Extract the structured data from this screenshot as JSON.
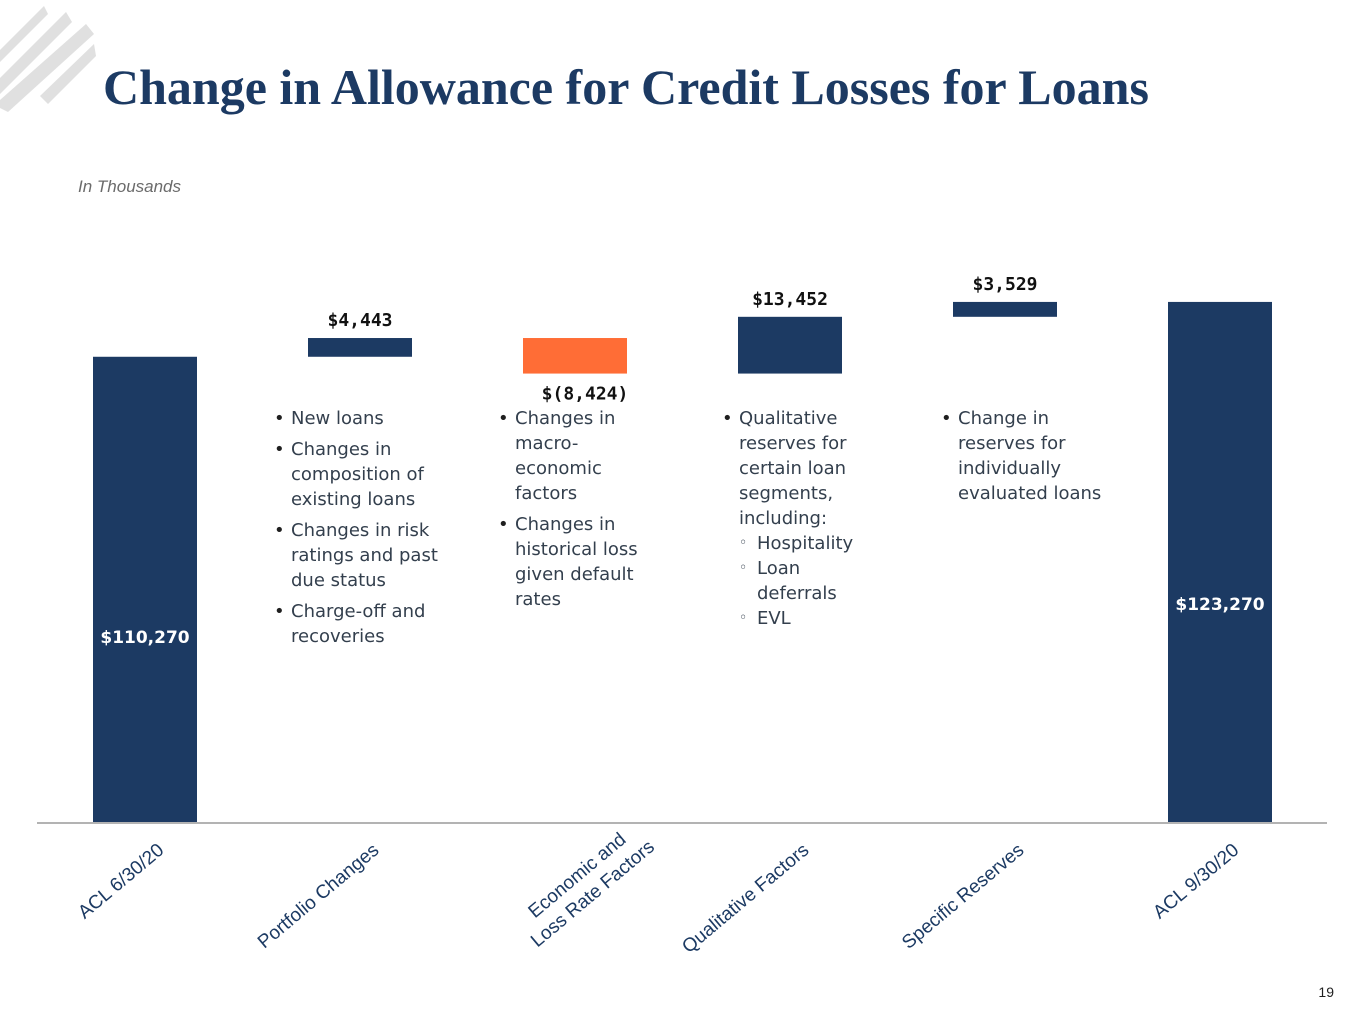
{
  "slide": {
    "title": "Change in Allowance for Credit Losses for Loans",
    "units_note": "In Thousands",
    "page_number": "19"
  },
  "colors": {
    "navy": "#1c3a63",
    "decrease": "#ff6d36",
    "logo": "#e0e0e0",
    "axis": "#9a9a9a"
  },
  "chart_data": {
    "type": "waterfall",
    "title": "",
    "xlabel": "",
    "ylabel": "",
    "ylim": [
      0,
      123270
    ],
    "steps": [
      {
        "category": "ACL 6/30/20",
        "kind": "total",
        "value": 110270,
        "label": "$110,270",
        "color": "navy"
      },
      {
        "category": "Portfolio Changes",
        "kind": "delta",
        "value": 4443,
        "label": "$4,443",
        "color": "navy"
      },
      {
        "category": "Economic and Loss Rate Factors",
        "category_lines": [
          "Economic and",
          "Loss Rate Factors"
        ],
        "kind": "delta",
        "value": -8424,
        "label": "$(8,424)",
        "color": "decrease"
      },
      {
        "category": "Qualitative Factors",
        "kind": "delta",
        "value": 13452,
        "label": "$13,452",
        "color": "navy"
      },
      {
        "category": "Specific Reserves",
        "kind": "delta",
        "value": 3529,
        "label": "$3,529",
        "color": "navy"
      },
      {
        "category": "ACL 9/30/20",
        "kind": "total",
        "value": 123270,
        "label": "$123,270",
        "color": "navy"
      }
    ]
  },
  "annotations": {
    "portfolio": {
      "items": [
        {
          "text": "New loans"
        },
        {
          "text": "Changes in composition of existing loans"
        },
        {
          "text": "Changes in risk ratings and past due status"
        },
        {
          "text": "Charge-off and recoveries"
        }
      ]
    },
    "economic": {
      "items": [
        {
          "text": "Changes in macro-economic factors"
        },
        {
          "text": "Changes in historical loss given default rates"
        }
      ]
    },
    "qualitative": {
      "items": [
        {
          "text": "Qualitative reserves for certain loan segments, including:",
          "sub": [
            "Hospitality",
            "Loan deferrals",
            "EVL"
          ]
        }
      ]
    },
    "specific": {
      "items": [
        {
          "text": "Change in reserves for individually evaluated loans"
        }
      ]
    }
  }
}
